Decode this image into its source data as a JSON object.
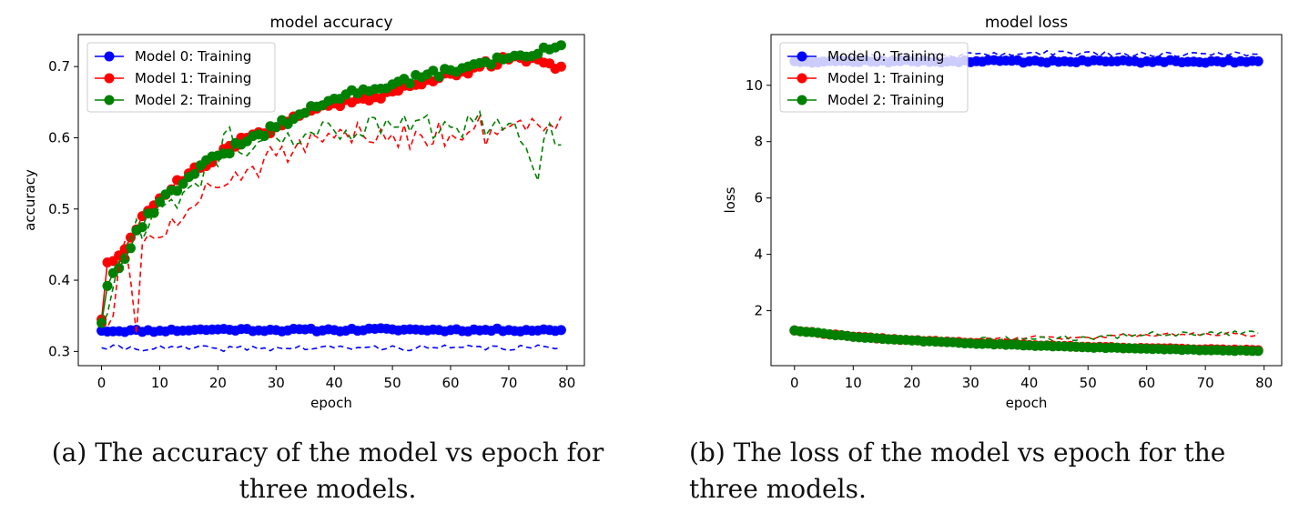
{
  "captions": {
    "a": "(a) The accuracy of the model vs epoch for three models.",
    "b": "(b) The loss of the model vs epoch for the three models."
  },
  "chart_data": [
    {
      "type": "line",
      "title": "model accuracy",
      "xlabel": "epoch",
      "ylabel": "accuracy",
      "xlim": [
        -4,
        83
      ],
      "ylim": [
        0.28,
        0.745
      ],
      "xticks": [
        0,
        10,
        20,
        30,
        40,
        50,
        60,
        70,
        80
      ],
      "yticks": [
        0.3,
        0.4,
        0.5,
        0.6,
        0.7
      ],
      "legend_position": "top-left",
      "legend": [
        "Model 0: Training",
        "Model 1: Training",
        "Model 2: Training"
      ],
      "series": [
        {
          "name": "Model 0: Training",
          "color": "#0000ff",
          "style": "solid-markers",
          "anchors": [
            [
              0,
              0.329
            ],
            [
              10,
              0.329
            ],
            [
              20,
              0.331
            ],
            [
              30,
              0.33
            ],
            [
              40,
              0.33
            ],
            [
              50,
              0.331
            ],
            [
              60,
              0.33
            ],
            [
              70,
              0.33
            ],
            [
              79,
              0.33
            ]
          ],
          "noise": 0.002,
          "seed": 11
        },
        {
          "name": "Model 1: Training",
          "color": "#ff0000",
          "style": "solid-markers",
          "anchors": [
            [
              0,
              0.345
            ],
            [
              1,
              0.425
            ],
            [
              3,
              0.435
            ],
            [
              5,
              0.46
            ],
            [
              7,
              0.49
            ],
            [
              10,
              0.515
            ],
            [
              15,
              0.55
            ],
            [
              20,
              0.575
            ],
            [
              25,
              0.6
            ],
            [
              30,
              0.615
            ],
            [
              35,
              0.635
            ],
            [
              40,
              0.648
            ],
            [
              45,
              0.655
            ],
            [
              50,
              0.665
            ],
            [
              55,
              0.675
            ],
            [
              60,
              0.69
            ],
            [
              65,
              0.7
            ],
            [
              70,
              0.71
            ],
            [
              75,
              0.71
            ],
            [
              79,
              0.7
            ]
          ],
          "noise": 0.006,
          "seed": 21
        },
        {
          "name": "Model 2: Training",
          "color": "#008000",
          "style": "solid-markers",
          "anchors": [
            [
              0,
              0.34
            ],
            [
              1,
              0.392
            ],
            [
              2,
              0.41
            ],
            [
              4,
              0.43
            ],
            [
              6,
              0.47
            ],
            [
              10,
              0.51
            ],
            [
              15,
              0.545
            ],
            [
              20,
              0.575
            ],
            [
              25,
              0.595
            ],
            [
              30,
              0.615
            ],
            [
              35,
              0.635
            ],
            [
              40,
              0.655
            ],
            [
              45,
              0.668
            ],
            [
              50,
              0.675
            ],
            [
              55,
              0.685
            ],
            [
              60,
              0.695
            ],
            [
              65,
              0.705
            ],
            [
              70,
              0.712
            ],
            [
              75,
              0.718
            ],
            [
              79,
              0.73
            ]
          ],
          "noise": 0.006,
          "seed": 31
        },
        {
          "name": "",
          "color": "#0000ff",
          "style": "dashed",
          "anchors": [
            [
              0,
              0.305
            ],
            [
              20,
              0.304
            ],
            [
              40,
              0.305
            ],
            [
              60,
              0.305
            ],
            [
              79,
              0.305
            ]
          ],
          "noise": 0.004,
          "seed": 41
        },
        {
          "name": "",
          "color": "#ff0000",
          "style": "dashed",
          "anchors": [
            [
              0,
              0.34
            ],
            [
              2,
              0.35
            ],
            [
              4,
              0.455
            ],
            [
              5,
              0.4
            ],
            [
              6,
              0.325
            ],
            [
              7,
              0.45
            ],
            [
              10,
              0.46
            ],
            [
              15,
              0.5
            ],
            [
              20,
              0.53
            ],
            [
              25,
              0.555
            ],
            [
              30,
              0.575
            ],
            [
              35,
              0.58
            ],
            [
              40,
              0.6
            ],
            [
              50,
              0.605
            ],
            [
              60,
              0.605
            ],
            [
              70,
              0.615
            ],
            [
              79,
              0.63
            ]
          ],
          "noise": 0.022,
          "seed": 51
        },
        {
          "name": "",
          "color": "#008000",
          "style": "dashed",
          "anchors": [
            [
              0,
              0.335
            ],
            [
              2,
              0.39
            ],
            [
              5,
              0.46
            ],
            [
              10,
              0.5
            ],
            [
              15,
              0.53
            ],
            [
              20,
              0.56
            ],
            [
              22,
              0.615
            ],
            [
              25,
              0.575
            ],
            [
              30,
              0.6
            ],
            [
              35,
              0.605
            ],
            [
              40,
              0.61
            ],
            [
              50,
              0.615
            ],
            [
              60,
              0.615
            ],
            [
              70,
              0.62
            ],
            [
              75,
              0.54
            ],
            [
              77,
              0.62
            ],
            [
              79,
              0.59
            ]
          ],
          "noise": 0.02,
          "seed": 61
        }
      ]
    },
    {
      "type": "line",
      "title": "model loss",
      "xlabel": "epoch",
      "ylabel": "loss",
      "xlim": [
        -4,
        83
      ],
      "ylim": [
        0.05,
        11.8
      ],
      "xticks": [
        0,
        10,
        20,
        30,
        40,
        50,
        60,
        70,
        80
      ],
      "yticks": [
        2,
        4,
        6,
        8,
        10
      ],
      "legend_position": "top-left",
      "legend": [
        "Model 0: Training",
        "Model 1: Training",
        "Model 2: Training"
      ],
      "series": [
        {
          "name": "",
          "color": "#0000ff",
          "style": "dashed",
          "anchors": [
            [
              0,
              11.0
            ],
            [
              20,
              11.05
            ],
            [
              40,
              11.15
            ],
            [
              60,
              11.1
            ],
            [
              79,
              11.1
            ]
          ],
          "noise": 0.09,
          "seed": 72
        },
        {
          "name": "",
          "color": "#ff0000",
          "style": "dashed",
          "anchors": [
            [
              0,
              1.35
            ],
            [
              10,
              1.15
            ],
            [
              20,
              1.0
            ],
            [
              30,
              0.95
            ],
            [
              40,
              1.05
            ],
            [
              50,
              1.05
            ],
            [
              60,
              1.15
            ],
            [
              70,
              1.2
            ],
            [
              79,
              1.15
            ]
          ],
          "noise": 0.08,
          "seed": 82
        },
        {
          "name": "",
          "color": "#008000",
          "style": "dashed",
          "anchors": [
            [
              0,
              1.3
            ],
            [
              10,
              1.1
            ],
            [
              20,
              0.95
            ],
            [
              30,
              0.95
            ],
            [
              40,
              1.0
            ],
            [
              50,
              1.05
            ],
            [
              60,
              1.15
            ],
            [
              70,
              1.2
            ],
            [
              79,
              1.2
            ]
          ],
          "noise": 0.1,
          "seed": 92
        },
        {
          "name": "Model 0: Training",
          "color": "#0000ff",
          "style": "solid-markers",
          "anchors": [
            [
              0,
              10.85
            ],
            [
              20,
              10.85
            ],
            [
              40,
              10.85
            ],
            [
              60,
              10.85
            ],
            [
              79,
              10.85
            ]
          ],
          "noise": 0.05,
          "seed": 12
        },
        {
          "name": "Model 1: Training",
          "color": "#ff0000",
          "style": "solid-markers",
          "anchors": [
            [
              0,
              1.3
            ],
            [
              10,
              1.08
            ],
            [
              20,
              0.95
            ],
            [
              30,
              0.86
            ],
            [
              40,
              0.78
            ],
            [
              50,
              0.72
            ],
            [
              60,
              0.67
            ],
            [
              70,
              0.63
            ],
            [
              79,
              0.6
            ]
          ],
          "noise": 0.015,
          "seed": 22
        },
        {
          "name": "Model 2: Training",
          "color": "#008000",
          "style": "solid-markers",
          "anchors": [
            [
              0,
              1.3
            ],
            [
              10,
              1.07
            ],
            [
              20,
              0.94
            ],
            [
              30,
              0.84
            ],
            [
              40,
              0.77
            ],
            [
              50,
              0.7
            ],
            [
              60,
              0.65
            ],
            [
              70,
              0.6
            ],
            [
              79,
              0.57
            ]
          ],
          "noise": 0.015,
          "seed": 32
        }
      ]
    }
  ]
}
